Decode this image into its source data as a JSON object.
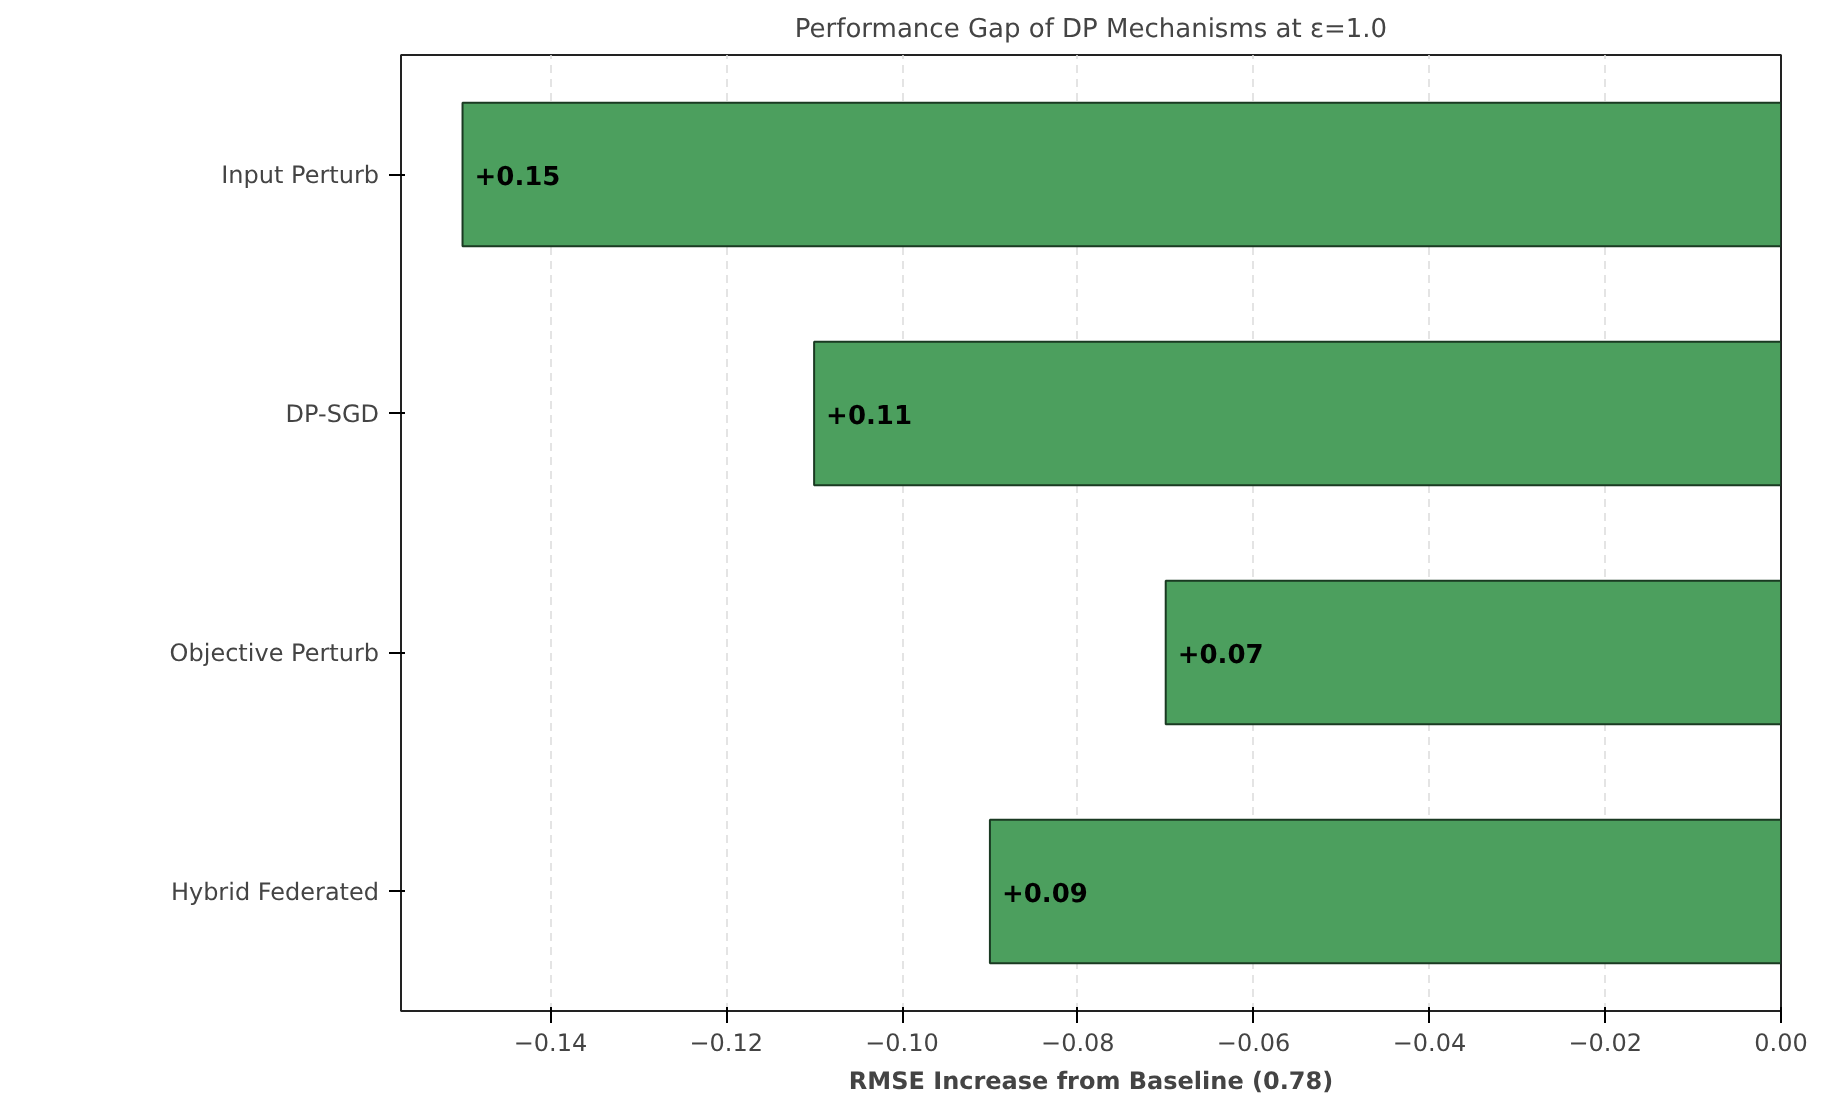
{
  "chart_data": {
    "type": "bar",
    "orientation": "horizontal",
    "title": "Performance Gap of DP Mechanisms at ε=1.0",
    "xlabel": "RMSE Increase from Baseline (0.78)",
    "categories": [
      "Input Perturb",
      "DP-SGD",
      "Objective Perturb",
      "Hybrid Federated"
    ],
    "values": [
      -0.15,
      -0.11,
      -0.07,
      -0.09
    ],
    "annotations": [
      {
        "text": "+0.15",
        "x": -0.15,
        "y": "Input Perturb"
      },
      {
        "text": "+0.11",
        "x": -0.11,
        "y": "DP-SGD"
      },
      {
        "text": "+0.07",
        "x": -0.07,
        "y": "Objective Perturb"
      },
      {
        "text": "+0.09",
        "x": -0.09,
        "y": "Hybrid Federated"
      }
    ],
    "color": "#4c9f5e",
    "xlim": [
      -0.157,
      0.0
    ],
    "xticks": [
      {
        "value": -0.14,
        "label": "−0.14"
      },
      {
        "value": -0.12,
        "label": "−0.12"
      },
      {
        "value": -0.1,
        "label": "−0.10"
      },
      {
        "value": -0.08,
        "label": "−0.08"
      },
      {
        "value": -0.06,
        "label": "−0.06"
      },
      {
        "value": -0.04,
        "label": "−0.04"
      },
      {
        "value": -0.02,
        "label": "−0.02"
      },
      {
        "value": 0.0,
        "label": "0.00"
      }
    ],
    "grid": "x"
  }
}
